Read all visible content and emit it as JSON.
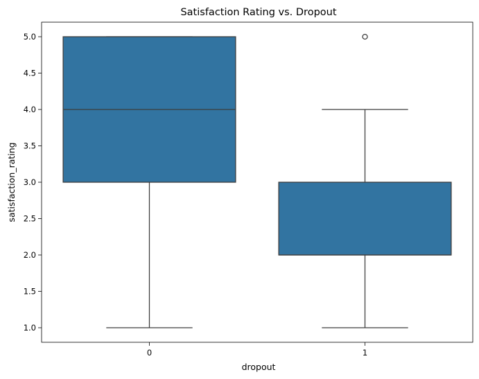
{
  "chart_data": {
    "type": "boxplot",
    "title": "Satisfaction Rating vs. Dropout",
    "xlabel": "dropout",
    "ylabel": "satisfaction_rating",
    "categories": [
      "0",
      "1"
    ],
    "ylim": [
      0.8,
      5.2
    ],
    "yticks": [
      "1.0",
      "1.5",
      "2.0",
      "2.5",
      "3.0",
      "3.5",
      "4.0",
      "4.5",
      "5.0"
    ],
    "box_color": "#3274a1",
    "line_color": "#3d3d3d",
    "boxes": [
      {
        "category": "0",
        "whisker_low": 1.0,
        "q1": 3.0,
        "median": 4.0,
        "q3": 5.0,
        "whisker_high": 5.0,
        "outliers": []
      },
      {
        "category": "1",
        "whisker_low": 1.0,
        "q1": 2.0,
        "median": 2.0,
        "q3": 3.0,
        "whisker_high": 4.0,
        "outliers": [
          5.0
        ]
      }
    ],
    "grid": false
  }
}
